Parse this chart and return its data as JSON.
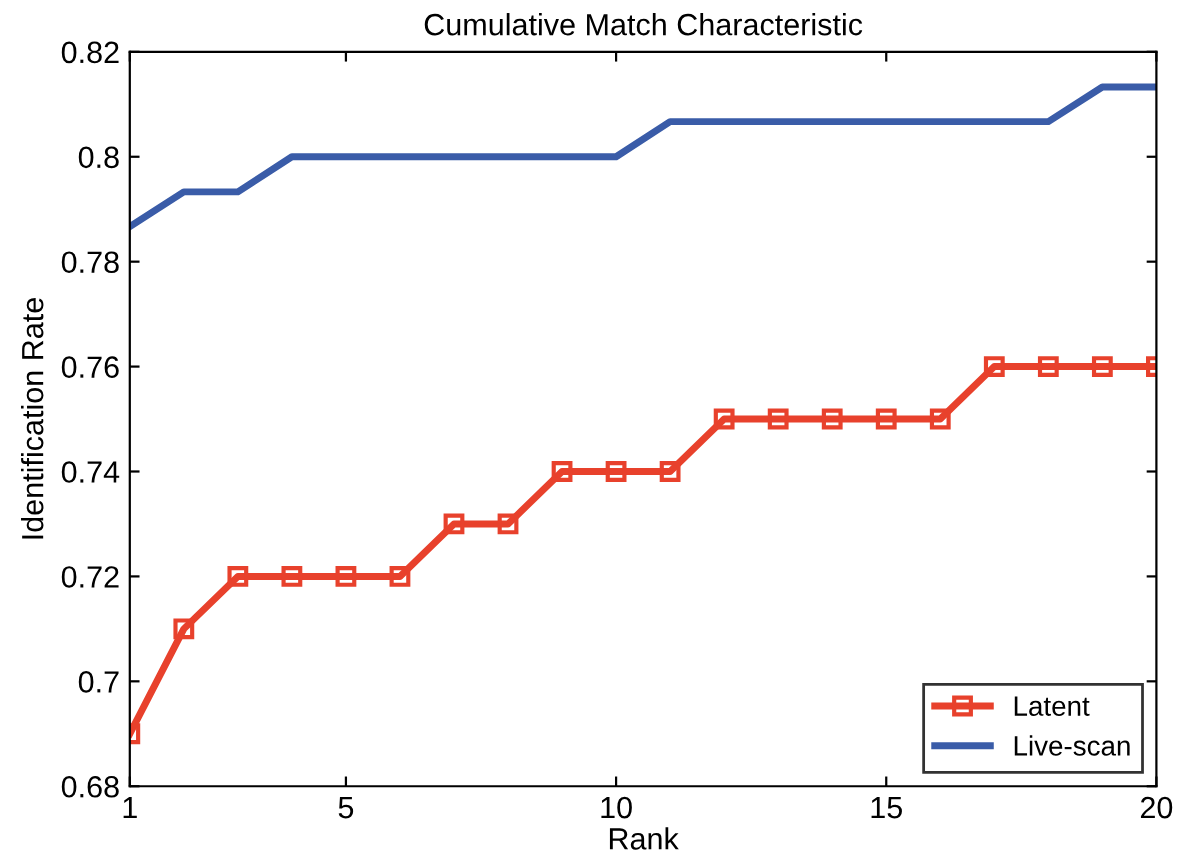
{
  "chart_data": {
    "type": "line",
    "title": "Cumulative Match Characteristic",
    "xlabel": "Rank",
    "ylabel": "Identification Rate",
    "x": [
      1,
      2,
      3,
      4,
      5,
      6,
      7,
      8,
      9,
      10,
      11,
      12,
      13,
      14,
      15,
      16,
      17,
      18,
      19,
      20
    ],
    "series": [
      {
        "name": "Latent",
        "color": "#e8412c",
        "marker": "square",
        "values": [
          0.69,
          0.71,
          0.72,
          0.72,
          0.72,
          0.72,
          0.73,
          0.73,
          0.74,
          0.74,
          0.74,
          0.75,
          0.75,
          0.75,
          0.75,
          0.75,
          0.76,
          0.76,
          0.76,
          0.76
        ]
      },
      {
        "name": "Live-scan",
        "color": "#3a5ca8",
        "marker": "none",
        "values": [
          0.7867,
          0.7933,
          0.7933,
          0.8,
          0.8,
          0.8,
          0.8,
          0.8,
          0.8,
          0.8,
          0.8067,
          0.8067,
          0.8067,
          0.8067,
          0.8067,
          0.8067,
          0.8067,
          0.8067,
          0.8133,
          0.8133
        ]
      }
    ],
    "xlim": [
      1,
      20
    ],
    "xticks": [
      1,
      5,
      10,
      15,
      20
    ],
    "ylim": [
      0.68,
      0.82
    ],
    "yticks": [
      0.68,
      0.7,
      0.72,
      0.74,
      0.76,
      0.78,
      0.8,
      0.82
    ],
    "grid": false,
    "legend": "bottom right",
    "line_style": "solid"
  }
}
